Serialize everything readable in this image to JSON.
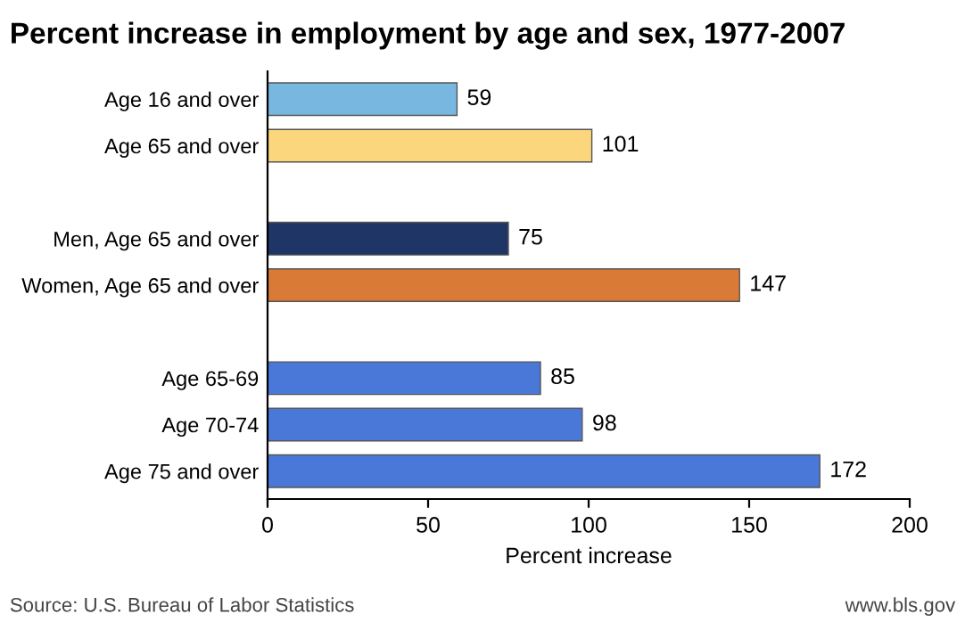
{
  "chart_data": {
    "type": "bar",
    "orientation": "horizontal",
    "title": "Percent increase in employment by age and sex, 1977-2007",
    "xlabel": "Percent increase",
    "categories": [
      "Age 16 and over",
      "Age 65 and over",
      null,
      "Men, Age 65 and over",
      "Women, Age 65 and over",
      null,
      "Age 65-69",
      "Age 70-74",
      "Age 75 and over"
    ],
    "values": [
      59,
      101,
      null,
      75,
      147,
      null,
      85,
      98,
      172
    ],
    "colors": [
      "#78b8e0",
      "#fbd67c",
      null,
      "#1e3566",
      "#d97a36",
      null,
      "#4a78d8",
      "#4a78d8",
      "#4a78d8"
    ],
    "xlim": [
      0,
      200
    ],
    "xticks": [
      0,
      50,
      100,
      150,
      200
    ],
    "data_labels": true,
    "grid": false,
    "legend": false,
    "annotations": [
      "Source: U.S. Bureau of Labor Statistics",
      "www.bls.gov"
    ]
  }
}
